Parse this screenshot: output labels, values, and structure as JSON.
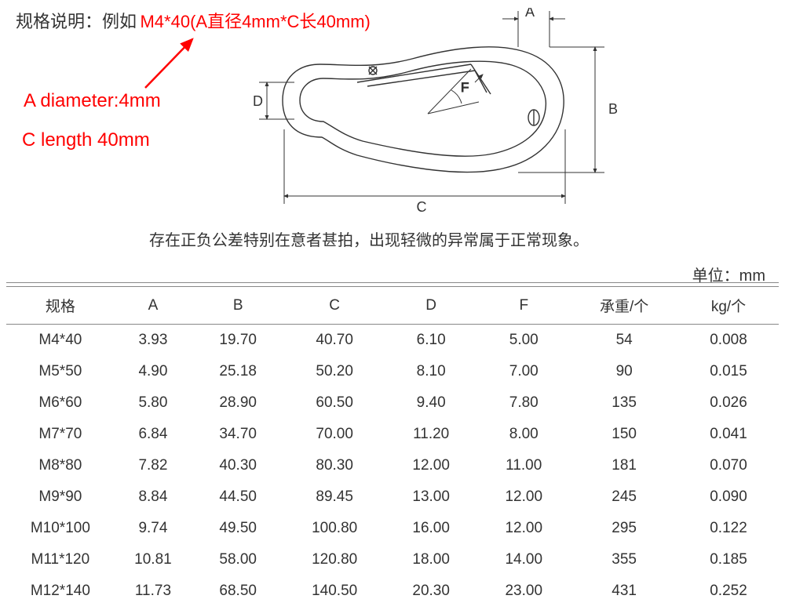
{
  "header": {
    "spec_label": "规格说明：例如",
    "spec_example": "M4*40(A直径4mm*C长40mm)"
  },
  "annotations": {
    "line1": "A diameter:4mm",
    "line2": "C length 40mm"
  },
  "diagram": {
    "labels": {
      "A": "A",
      "B": "B",
      "C": "C",
      "D": "D",
      "F": "F"
    },
    "stroke_color": "#333333",
    "stroke_width": 1.2,
    "arrow_color": "#ff0000"
  },
  "note": "存在正负公差特别在意者甚拍，出现轻微的异常属于正常现象。",
  "unit": "单位：mm",
  "table": {
    "columns": [
      "规格",
      "A",
      "B",
      "C",
      "D",
      "F",
      "承重/个",
      "kg/个"
    ],
    "column_widths": [
      "14%",
      "10%",
      "12%",
      "13%",
      "12%",
      "12%",
      "14%",
      "13%"
    ],
    "header_border_color": "#888888",
    "text_color": "#333333",
    "font_size": 19,
    "rows": [
      [
        "M4*40",
        "3.93",
        "19.70",
        "40.70",
        "6.10",
        "5.00",
        "54",
        "0.008"
      ],
      [
        "M5*50",
        "4.90",
        "25.18",
        "50.20",
        "8.10",
        "7.00",
        "90",
        "0.015"
      ],
      [
        "M6*60",
        "5.80",
        "28.90",
        "60.50",
        "9.40",
        "7.80",
        "135",
        "0.026"
      ],
      [
        "M7*70",
        "6.84",
        "34.70",
        "70.00",
        "11.20",
        "8.00",
        "150",
        "0.041"
      ],
      [
        "M8*80",
        "7.82",
        "40.30",
        "80.30",
        "12.00",
        "11.00",
        "181",
        "0.070"
      ],
      [
        "M9*90",
        "8.84",
        "44.50",
        "89.45",
        "13.00",
        "12.00",
        "245",
        "0.090"
      ],
      [
        "M10*100",
        "9.74",
        "49.50",
        "100.80",
        "16.00",
        "12.00",
        "295",
        "0.122"
      ],
      [
        "M11*120",
        "10.81",
        "58.00",
        "120.80",
        "18.00",
        "14.00",
        "355",
        "0.185"
      ],
      [
        "M12*140",
        "11.73",
        "68.50",
        "140.50",
        "20.30",
        "23.00",
        "431",
        "0.252"
      ]
    ]
  },
  "colors": {
    "red": "#ff0000",
    "text": "#333333",
    "border": "#888888",
    "background": "#ffffff"
  }
}
